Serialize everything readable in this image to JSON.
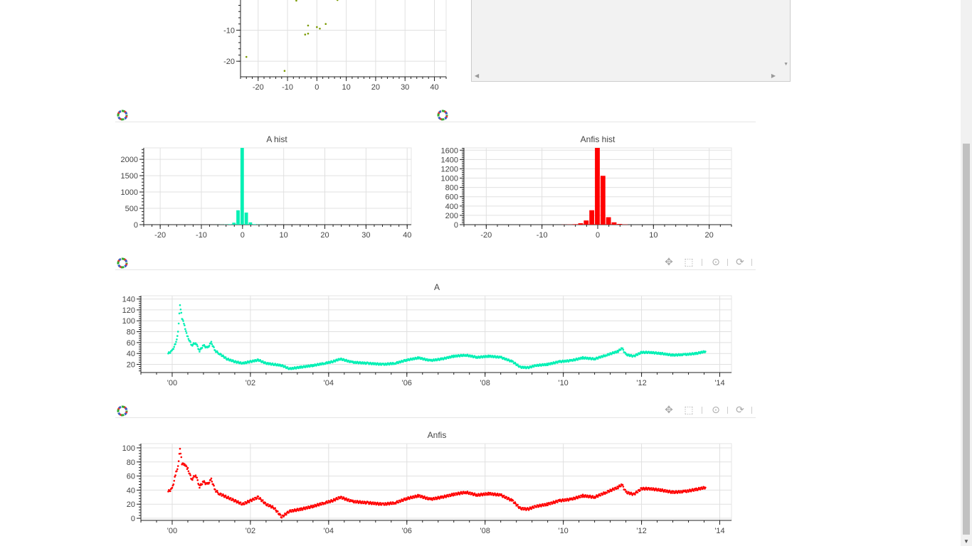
{
  "colors": {
    "a_series": "#00f0b4",
    "anfis_series": "#ff0000",
    "scatter": "#7a9a00",
    "grid": "#e0e0e0",
    "axis": "#222222"
  },
  "toolbar": {
    "pan_icon": "move-icon",
    "box_zoom_icon": "box-zoom-icon",
    "wheel_zoom_icon": "wheel-zoom-icon",
    "reset_icon": "reset-icon"
  },
  "chart_data": [
    {
      "type": "scatter",
      "title": "",
      "x_ticks": [
        "-20",
        "-10",
        "0",
        "10",
        "20",
        "30",
        "40"
      ],
      "y_ticks": [
        "-10",
        "-20"
      ],
      "xlim": [
        -26,
        44
      ],
      "ylim": [
        -25,
        2
      ],
      "points": [
        [
          -24,
          -18.6
        ],
        [
          -11,
          -23.1
        ],
        [
          -7,
          -0.5
        ],
        [
          -6,
          0
        ],
        [
          -4,
          -11.4
        ],
        [
          -3,
          -11.1
        ],
        [
          -3,
          -8.5
        ],
        [
          0,
          -9
        ],
        [
          1,
          -9.5
        ],
        [
          3,
          -8
        ],
        [
          7,
          -0.3
        ]
      ]
    },
    {
      "type": "bar",
      "title": "A hist",
      "x_ticks": [
        "-20",
        "-10",
        "0",
        "10",
        "20",
        "30",
        "40"
      ],
      "y_ticks": [
        "0",
        "500",
        "1000",
        "1500",
        "2000"
      ],
      "xlim": [
        -24,
        41
      ],
      "ylim": [
        0,
        2350
      ],
      "bins": [
        [
          -6,
          1
        ],
        [
          -5,
          3
        ],
        [
          -4,
          6
        ],
        [
          -3,
          15
        ],
        [
          -2,
          60
        ],
        [
          -1,
          440
        ],
        [
          0,
          2350
        ],
        [
          1,
          370
        ],
        [
          2,
          70
        ],
        [
          3,
          15
        ],
        [
          4,
          5
        ],
        [
          5,
          2
        ]
      ]
    },
    {
      "type": "bar",
      "title": "Anfis hist",
      "x_ticks": [
        "-20",
        "-10",
        "0",
        "10",
        "20"
      ],
      "y_ticks": [
        "0",
        "200",
        "400",
        "600",
        "800",
        "1000",
        "1200",
        "1400",
        "1600"
      ],
      "xlim": [
        -24,
        24
      ],
      "ylim": [
        0,
        1650
      ],
      "bins": [
        [
          -6,
          2
        ],
        [
          -5,
          4
        ],
        [
          -4,
          10
        ],
        [
          -3,
          30
        ],
        [
          -2,
          90
        ],
        [
          -1,
          310
        ],
        [
          0,
          1650
        ],
        [
          1,
          1050
        ],
        [
          2,
          160
        ],
        [
          3,
          50
        ],
        [
          4,
          15
        ],
        [
          5,
          5
        ]
      ]
    },
    {
      "type": "line",
      "title": "A",
      "x_ticks": [
        "'00",
        "'02",
        "'04",
        "'06",
        "'08",
        "'10",
        "'12",
        "'14"
      ],
      "y_ticks": [
        "20",
        "40",
        "60",
        "80",
        "100",
        "120",
        "140"
      ],
      "xlim": [
        1999.2,
        2014.3
      ],
      "ylim": [
        5,
        146
      ],
      "x": [
        1999.9,
        2000.0,
        2000.1,
        2000.15,
        2000.2,
        2000.25,
        2000.3,
        2000.35,
        2000.4,
        2000.5,
        2000.6,
        2000.7,
        2000.8,
        2000.9,
        2001.0,
        2001.1,
        2001.2,
        2001.4,
        2001.6,
        2001.8,
        2002.0,
        2002.2,
        2002.4,
        2002.6,
        2002.8,
        2003.0,
        2003.3,
        2003.6,
        2003.9,
        2004.1,
        2004.3,
        2004.6,
        2005.0,
        2005.4,
        2005.7,
        2006.0,
        2006.3,
        2006.6,
        2006.9,
        2007.2,
        2007.5,
        2007.8,
        2008.1,
        2008.4,
        2008.7,
        2008.9,
        2009.1,
        2009.3,
        2009.6,
        2009.9,
        2010.2,
        2010.5,
        2010.8,
        2011.1,
        2011.4,
        2011.5,
        2011.6,
        2011.8,
        2012.0,
        2012.2,
        2012.5,
        2012.8,
        2013.1,
        2013.4,
        2013.65
      ],
      "y": [
        40,
        45,
        60,
        80,
        130,
        105,
        95,
        80,
        70,
        55,
        60,
        45,
        55,
        50,
        60,
        45,
        40,
        30,
        25,
        22,
        25,
        28,
        22,
        20,
        18,
        12,
        15,
        18,
        22,
        25,
        30,
        24,
        22,
        20,
        22,
        28,
        32,
        27,
        30,
        35,
        37,
        33,
        35,
        33,
        25,
        15,
        14,
        18,
        20,
        25,
        27,
        32,
        30,
        37,
        44,
        50,
        38,
        35,
        42,
        42,
        40,
        37,
        38,
        40,
        44
      ]
    },
    {
      "type": "line",
      "title": "Anfis",
      "x_ticks": [
        "'00",
        "'02",
        "'04",
        "'06",
        "'08",
        "'10",
        "'12",
        "'14"
      ],
      "y_ticks": [
        "0",
        "20",
        "40",
        "60",
        "80",
        "100"
      ],
      "xlim": [
        1999.2,
        2014.3
      ],
      "ylim": [
        -3,
        106
      ],
      "x": [
        1999.9,
        2000.0,
        2000.1,
        2000.15,
        2000.2,
        2000.25,
        2000.3,
        2000.35,
        2000.4,
        2000.5,
        2000.6,
        2000.7,
        2000.8,
        2000.9,
        2001.0,
        2001.1,
        2001.2,
        2001.4,
        2001.6,
        2001.8,
        2002.0,
        2002.2,
        2002.4,
        2002.6,
        2002.8,
        2003.0,
        2003.3,
        2003.6,
        2003.9,
        2004.1,
        2004.3,
        2004.6,
        2005.0,
        2005.4,
        2005.7,
        2006.0,
        2006.3,
        2006.6,
        2006.9,
        2007.2,
        2007.5,
        2007.8,
        2008.1,
        2008.4,
        2008.7,
        2008.9,
        2009.1,
        2009.3,
        2009.6,
        2009.9,
        2010.2,
        2010.5,
        2010.8,
        2011.1,
        2011.4,
        2011.5,
        2011.6,
        2011.8,
        2012.0,
        2012.2,
        2012.5,
        2012.8,
        2013.1,
        2013.4,
        2013.65
      ],
      "y": [
        38,
        42,
        65,
        74,
        100,
        78,
        76,
        74,
        70,
        55,
        62,
        45,
        52,
        48,
        55,
        40,
        35,
        30,
        25,
        20,
        25,
        30,
        20,
        15,
        2,
        10,
        13,
        17,
        22,
        25,
        30,
        24,
        22,
        20,
        22,
        28,
        32,
        27,
        30,
        34,
        37,
        33,
        35,
        33,
        25,
        14,
        13,
        17,
        20,
        25,
        27,
        32,
        30,
        37,
        44,
        48,
        37,
        34,
        42,
        42,
        40,
        37,
        38,
        41,
        44
      ]
    }
  ]
}
